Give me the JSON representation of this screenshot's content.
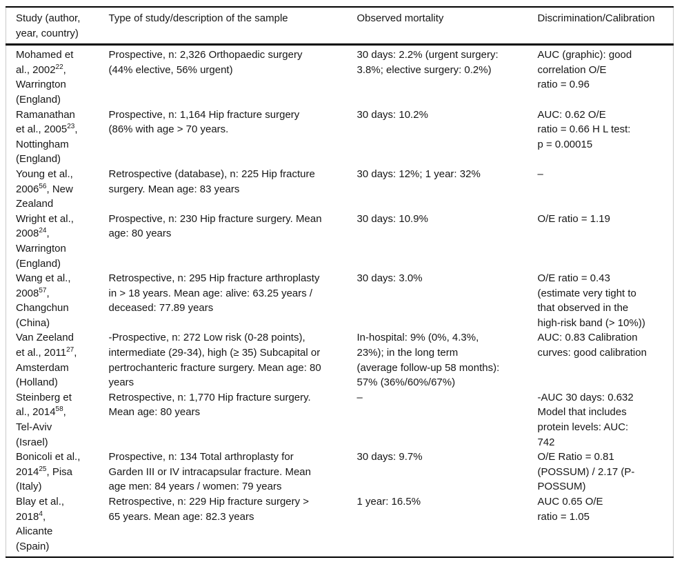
{
  "table": {
    "headers": {
      "study": "Study (author, year, country)",
      "type_of_study": "Type of study/description of the sample",
      "observed_mortality": "Observed mortality",
      "discrimination_calibration": "Discrimination/Calibration"
    },
    "rows": [
      {
        "study": {
          "pre": "Mohamed et al., 2002",
          "sup": "22",
          "post": ", Warrington (England)"
        },
        "type_of_study": "Prospective, n: 2,326 Orthopaedic surgery (44% elective, 56% urgent)",
        "observed_mortality": "30 days: 2.2% (urgent surgery: 3.8%; elective surgery: 0.2%)",
        "discrimination_calibration": "AUC (graphic): good correlation O/E ratio = 0.96"
      },
      {
        "study": {
          "pre": "Ramanathan et al., 2005",
          "sup": "23",
          "post": ", Nottingham (England)"
        },
        "type_of_study": "Prospective, n: 1,164 Hip fracture surgery (86% with age > 70 years.",
        "observed_mortality": "30 days: 10.2%",
        "discrimination_calibration": "AUC: 0.62 O/E ratio = 0.66 H L test: p = 0.00015"
      },
      {
        "study": {
          "pre": "Young et al., 2006",
          "sup": "56",
          "post": ", New Zealand"
        },
        "type_of_study": "Retrospective (database), n: 225 Hip fracture surgery. Mean age: 83 years",
        "observed_mortality": "30 days: 12%; 1 year: 32%",
        "discrimination_calibration": "–"
      },
      {
        "study": {
          "pre": "Wright et al., 2008",
          "sup": "24",
          "post": ", Warrington (England)"
        },
        "type_of_study": "Prospective, n: 230 Hip fracture surgery. Mean age: 80 years",
        "observed_mortality": "30 days: 10.9%",
        "discrimination_calibration": "O/E ratio = 1.19"
      },
      {
        "study": {
          "pre": "Wang et al., 2008",
          "sup": "57",
          "post": ", Changchun (China)"
        },
        "type_of_study": "Retrospective, n: 295 Hip fracture arthroplasty in > 18 years. Mean age: alive: 63.25 years / deceased: 77.89 years",
        "observed_mortality": "30 days: 3.0%",
        "discrimination_calibration": "O/E ratio = 0.43 (estimate very tight to that observed in the high-risk band (> 10%))"
      },
      {
        "study": {
          "pre": "Van Zeeland et al., 2011",
          "sup": "27",
          "post": ", Amsterdam (Holland)"
        },
        "type_of_study": "-Prospective, n: 272 Low risk (0-28 points), intermediate (29-34), high (≥ 35) Subcapital or pertrochanteric fracture surgery. Mean age: 80 years",
        "observed_mortality": "In-hospital: 9% (0%, 4.3%, 23%); in the long term (average follow-up 58 months): 57% (36%/60%/67%)",
        "discrimination_calibration": "AUC: 0.83 Calibration curves: good calibration"
      },
      {
        "study": {
          "pre": "Steinberg et al., 2014",
          "sup": "58",
          "post": ", Tel-Aviv (Israel)"
        },
        "type_of_study": "Retrospective, n: 1,770 Hip fracture surgery. Mean age: 80 years",
        "observed_mortality": "–",
        "discrimination_calibration": "-AUC 30 days: 0.632 Model that includes protein levels: AUC: 742"
      },
      {
        "study": {
          "pre": "Bonicoli et al., 2014",
          "sup": "25",
          "post": ", Pisa (Italy)"
        },
        "type_of_study": "Prospective, n: 134 Total arthroplasty for Garden III or IV intracapsular fracture. Mean age men: 84 years / women: 79 years",
        "observed_mortality": "30 days: 9.7%",
        "discrimination_calibration": "O/E Ratio = 0.81 (POSSUM) / 2.17 (P-POSSUM)"
      },
      {
        "study": {
          "pre": "Blay et al., 2018",
          "sup": "4",
          "post": ", Alicante (Spain)"
        },
        "type_of_study": "Retrospective, n: 229 Hip fracture surgery > 65 years. Mean age: 82.3 years",
        "observed_mortality": "1 year: 16.5%",
        "discrimination_calibration": "AUC 0.65 O/E ratio = 1.05"
      }
    ]
  }
}
